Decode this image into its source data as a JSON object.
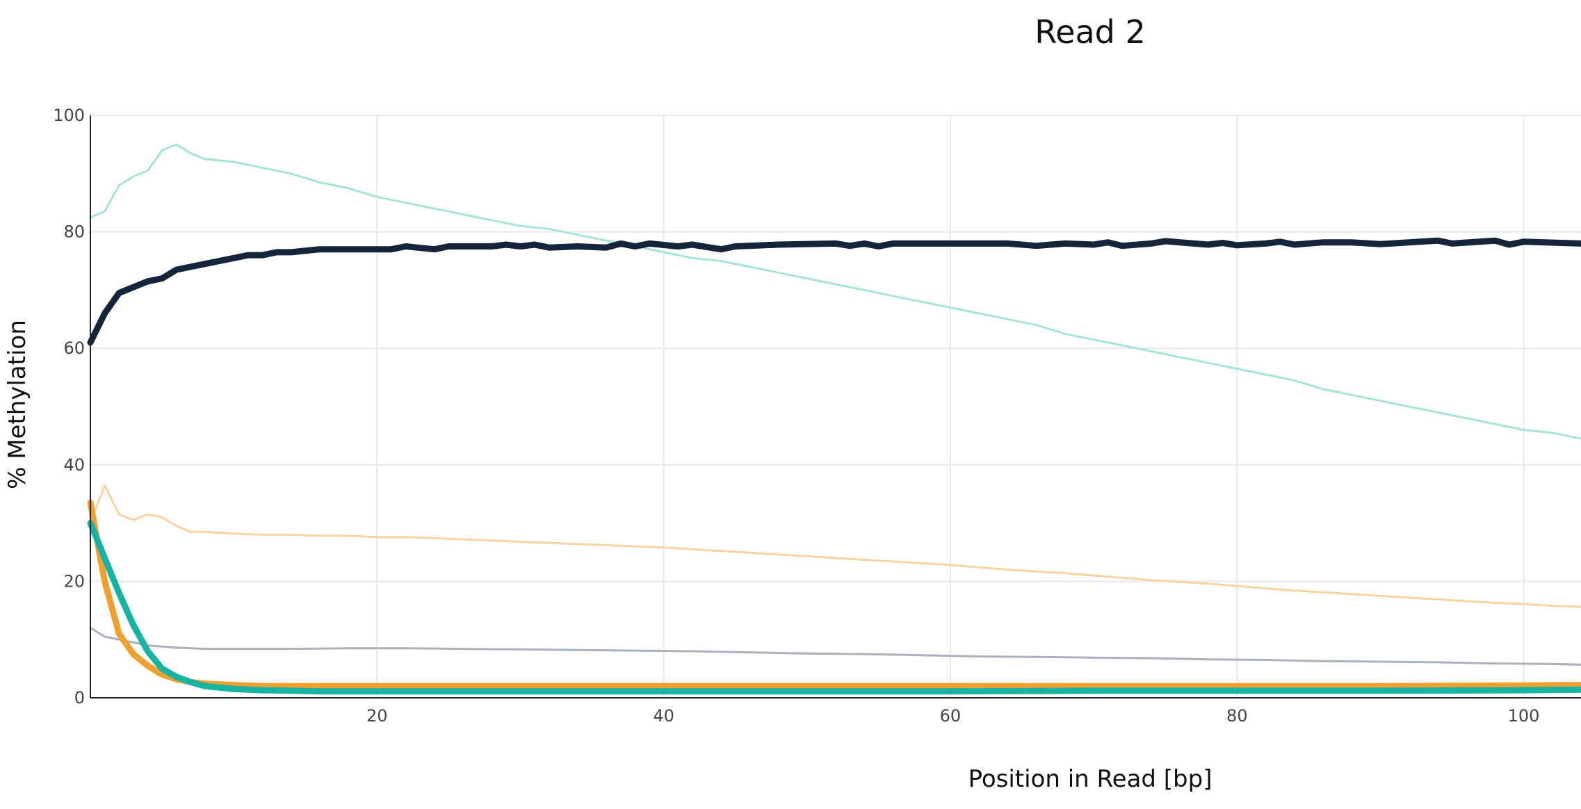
{
  "chart_data": {
    "type": "line",
    "title": "Read 2",
    "xlabel": "Position in Read [bp]",
    "ylabel": "% Methylation",
    "xlim": [
      0,
      104
    ],
    "ylim": [
      0,
      100
    ],
    "xticks": [
      20,
      40,
      60,
      80,
      100
    ],
    "yticks": [
      0,
      20,
      40,
      60,
      80,
      100
    ],
    "grid": true,
    "series": [
      {
        "color": "#a8e2dc",
        "width": 3,
        "points": [
          [
            0,
            82.5
          ],
          [
            1,
            83.5
          ],
          [
            2,
            88
          ],
          [
            3,
            89.5
          ],
          [
            4,
            90.5
          ],
          [
            5,
            94
          ],
          [
            6,
            95
          ],
          [
            7,
            93.5
          ],
          [
            8,
            92.5
          ],
          [
            10,
            92
          ],
          [
            12,
            91
          ],
          [
            14,
            90
          ],
          [
            16,
            88.5
          ],
          [
            18,
            87.5
          ],
          [
            20,
            86
          ],
          [
            22,
            85
          ],
          [
            24,
            84
          ],
          [
            26,
            83
          ],
          [
            28,
            82
          ],
          [
            30,
            81
          ],
          [
            32,
            80.5
          ],
          [
            34,
            79.5
          ],
          [
            36,
            78.5
          ],
          [
            38,
            77.5
          ],
          [
            40,
            76.5
          ],
          [
            42,
            75.5
          ],
          [
            44,
            75
          ],
          [
            46,
            74
          ],
          [
            48,
            73
          ],
          [
            50,
            72
          ],
          [
            52,
            71
          ],
          [
            54,
            70
          ],
          [
            56,
            69
          ],
          [
            58,
            68
          ],
          [
            60,
            67
          ],
          [
            62,
            66
          ],
          [
            64,
            65
          ],
          [
            66,
            64
          ],
          [
            68,
            62.5
          ],
          [
            70,
            61.5
          ],
          [
            72,
            60.5
          ],
          [
            74,
            59.5
          ],
          [
            76,
            58.5
          ],
          [
            78,
            57.5
          ],
          [
            80,
            56.5
          ],
          [
            82,
            55.5
          ],
          [
            84,
            54.5
          ],
          [
            86,
            53
          ],
          [
            88,
            52
          ],
          [
            90,
            51
          ],
          [
            92,
            50
          ],
          [
            94,
            49
          ],
          [
            96,
            48
          ],
          [
            98,
            47
          ],
          [
            100,
            46
          ],
          [
            102,
            45.5
          ],
          [
            104,
            44.5
          ]
        ]
      },
      {
        "color": "#f9d3a2",
        "width": 3,
        "points": [
          [
            0,
            30
          ],
          [
            1,
            36.5
          ],
          [
            2,
            31.5
          ],
          [
            3,
            30.5
          ],
          [
            4,
            31.5
          ],
          [
            5,
            31
          ],
          [
            6,
            29.5
          ],
          [
            7,
            28.5
          ],
          [
            8,
            28.5
          ],
          [
            10,
            28.2
          ],
          [
            12,
            28
          ],
          [
            14,
            28
          ],
          [
            16,
            27.8
          ],
          [
            18,
            27.8
          ],
          [
            20,
            27.6
          ],
          [
            22,
            27.6
          ],
          [
            24,
            27.4
          ],
          [
            26,
            27.2
          ],
          [
            28,
            27
          ],
          [
            30,
            26.8
          ],
          [
            32,
            26.6
          ],
          [
            34,
            26.4
          ],
          [
            36,
            26.2
          ],
          [
            38,
            26
          ],
          [
            40,
            25.8
          ],
          [
            42,
            25.5
          ],
          [
            44,
            25.2
          ],
          [
            46,
            24.9
          ],
          [
            48,
            24.6
          ],
          [
            50,
            24.3
          ],
          [
            52,
            24
          ],
          [
            54,
            23.7
          ],
          [
            56,
            23.4
          ],
          [
            58,
            23.1
          ],
          [
            60,
            22.8
          ],
          [
            62,
            22.4
          ],
          [
            64,
            22
          ],
          [
            66,
            21.7
          ],
          [
            68,
            21.4
          ],
          [
            70,
            21
          ],
          [
            72,
            20.6
          ],
          [
            74,
            20.2
          ],
          [
            76,
            19.9
          ],
          [
            78,
            19.6
          ],
          [
            80,
            19.2
          ],
          [
            82,
            18.8
          ],
          [
            84,
            18.4
          ],
          [
            86,
            18.1
          ],
          [
            88,
            17.8
          ],
          [
            90,
            17.5
          ],
          [
            92,
            17.2
          ],
          [
            94,
            16.9
          ],
          [
            96,
            16.6
          ],
          [
            98,
            16.3
          ],
          [
            100,
            16.1
          ],
          [
            102,
            15.8
          ],
          [
            104,
            15.6
          ]
        ]
      },
      {
        "color": "#aab2bb",
        "width": 3,
        "points": [
          [
            0,
            12
          ],
          [
            1,
            10.5
          ],
          [
            2,
            10
          ],
          [
            3,
            9.5
          ],
          [
            4,
            9
          ],
          [
            5,
            8.8
          ],
          [
            6,
            8.6
          ],
          [
            8,
            8.4
          ],
          [
            10,
            8.4
          ],
          [
            14,
            8.4
          ],
          [
            18,
            8.5
          ],
          [
            22,
            8.5
          ],
          [
            26,
            8.4
          ],
          [
            30,
            8.3
          ],
          [
            34,
            8.2
          ],
          [
            38,
            8.1
          ],
          [
            42,
            8
          ],
          [
            46,
            7.8
          ],
          [
            50,
            7.6
          ],
          [
            54,
            7.5
          ],
          [
            58,
            7.3
          ],
          [
            62,
            7.1
          ],
          [
            66,
            7
          ],
          [
            70,
            6.9
          ],
          [
            74,
            6.8
          ],
          [
            78,
            6.6
          ],
          [
            82,
            6.5
          ],
          [
            86,
            6.3
          ],
          [
            90,
            6.2
          ],
          [
            94,
            6.1
          ],
          [
            98,
            5.9
          ],
          [
            102,
            5.8
          ],
          [
            104,
            5.7
          ]
        ]
      },
      {
        "color": "#f0a030",
        "width": 9,
        "points": [
          [
            0,
            33.5
          ],
          [
            1,
            20
          ],
          [
            2,
            11
          ],
          [
            3,
            7.5
          ],
          [
            4,
            5.5
          ],
          [
            5,
            4
          ],
          [
            6,
            3.2
          ],
          [
            7,
            2.7
          ],
          [
            8,
            2.4
          ],
          [
            10,
            2.2
          ],
          [
            12,
            2
          ],
          [
            16,
            2
          ],
          [
            20,
            2
          ],
          [
            30,
            2
          ],
          [
            40,
            2
          ],
          [
            50,
            2
          ],
          [
            60,
            2
          ],
          [
            70,
            2
          ],
          [
            80,
            2
          ],
          [
            90,
            2
          ],
          [
            100,
            2.1
          ],
          [
            104,
            2.2
          ]
        ]
      },
      {
        "color": "#17b3a3",
        "width": 9,
        "points": [
          [
            0,
            30
          ],
          [
            1,
            24
          ],
          [
            2,
            18
          ],
          [
            3,
            12.5
          ],
          [
            4,
            8
          ],
          [
            5,
            5
          ],
          [
            6,
            3.6
          ],
          [
            7,
            2.7
          ],
          [
            8,
            2
          ],
          [
            10,
            1.5
          ],
          [
            12,
            1.3
          ],
          [
            16,
            1.1
          ],
          [
            20,
            1.1
          ],
          [
            30,
            1.1
          ],
          [
            40,
            1.1
          ],
          [
            50,
            1.1
          ],
          [
            60,
            1.1
          ],
          [
            70,
            1.2
          ],
          [
            80,
            1.2
          ],
          [
            90,
            1.2
          ],
          [
            100,
            1.3
          ],
          [
            104,
            1.4
          ]
        ]
      },
      {
        "color": "#13243b",
        "width": 9,
        "points": [
          [
            0,
            61
          ],
          [
            1,
            66
          ],
          [
            2,
            69.5
          ],
          [
            3,
            70.5
          ],
          [
            4,
            71.5
          ],
          [
            5,
            72
          ],
          [
            6,
            73.5
          ],
          [
            7,
            74
          ],
          [
            8,
            74.5
          ],
          [
            9,
            75
          ],
          [
            10,
            75.5
          ],
          [
            11,
            76
          ],
          [
            12,
            76
          ],
          [
            13,
            76.5
          ],
          [
            14,
            76.5
          ],
          [
            16,
            77
          ],
          [
            18,
            77
          ],
          [
            20,
            77
          ],
          [
            21,
            77
          ],
          [
            22,
            77.5
          ],
          [
            24,
            77
          ],
          [
            25,
            77.5
          ],
          [
            27,
            77.5
          ],
          [
            28,
            77.5
          ],
          [
            29,
            77.8
          ],
          [
            30,
            77.5
          ],
          [
            31,
            77.8
          ],
          [
            32,
            77.3
          ],
          [
            34,
            77.5
          ],
          [
            36,
            77.3
          ],
          [
            37,
            78
          ],
          [
            38,
            77.5
          ],
          [
            39,
            78
          ],
          [
            41,
            77.5
          ],
          [
            42,
            77.8
          ],
          [
            44,
            77
          ],
          [
            45,
            77.5
          ],
          [
            48,
            77.8
          ],
          [
            52,
            78
          ],
          [
            53,
            77.6
          ],
          [
            54,
            78
          ],
          [
            55,
            77.5
          ],
          [
            56,
            78
          ],
          [
            60,
            78
          ],
          [
            64,
            78
          ],
          [
            66,
            77.6
          ],
          [
            68,
            78
          ],
          [
            70,
            77.8
          ],
          [
            71,
            78.2
          ],
          [
            72,
            77.6
          ],
          [
            74,
            78
          ],
          [
            75,
            78.4
          ],
          [
            77,
            78
          ],
          [
            78,
            77.8
          ],
          [
            79,
            78.1
          ],
          [
            80,
            77.7
          ],
          [
            82,
            78
          ],
          [
            83,
            78.3
          ],
          [
            84,
            77.8
          ],
          [
            86,
            78.2
          ],
          [
            88,
            78.2
          ],
          [
            90,
            77.9
          ],
          [
            92,
            78.2
          ],
          [
            94,
            78.5
          ],
          [
            95,
            78
          ],
          [
            98,
            78.5
          ],
          [
            99,
            77.8
          ],
          [
            100,
            78.3
          ],
          [
            104,
            78
          ]
        ]
      }
    ]
  }
}
